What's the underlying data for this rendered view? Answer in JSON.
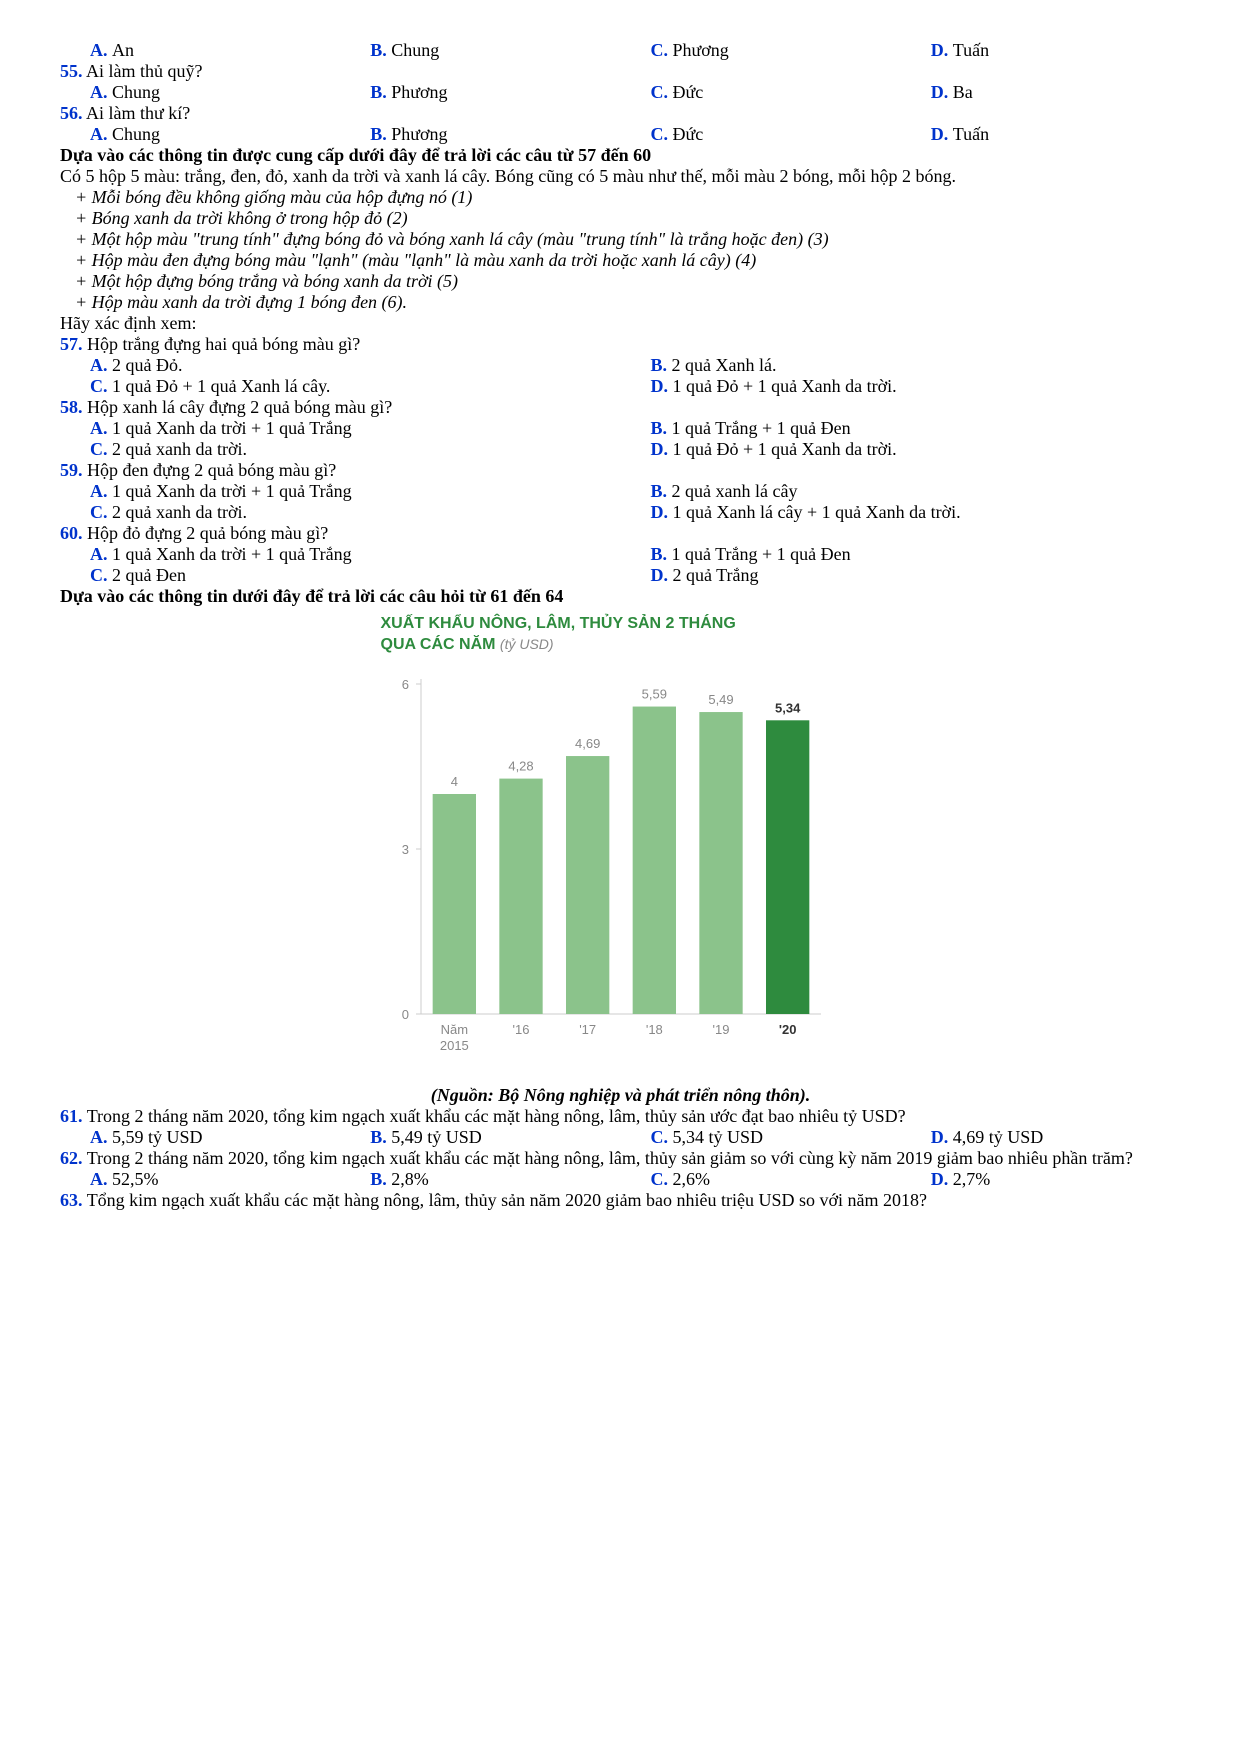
{
  "q54_opts": {
    "A": "An",
    "B": "Chung",
    "C": "Phương",
    "D": "Tuấn"
  },
  "q55": {
    "num": "55.",
    "text": "Ai làm thủ quỹ?",
    "A": "Chung",
    "B": "Phương",
    "C": "Đức",
    "D": "Ba"
  },
  "q56": {
    "num": "56.",
    "text": "Ai làm thư kí?",
    "A": "Chung",
    "B": "Phương",
    "C": "Đức",
    "D": "Tuấn"
  },
  "sec1_head": "Dựa vào các thông tin được cung cấp dưới đây để trả lời các câu từ 57 đến 60",
  "sec1_intro": "Có 5 hộp 5 màu: trắng, đen, đỏ, xanh da trời và xanh lá cây. Bóng cũng có 5 màu như thế, mỗi màu 2 bóng, mỗi hộp 2 bóng.",
  "clue1": "+ Mỗi bóng đều không giống màu của hộp đựng nó (1)",
  "clue2": "+ Bóng xanh da trời không ở trong hộp đỏ (2)",
  "clue3": "+ Một hộp màu \"trung tính\" đựng bóng đỏ và bóng xanh lá cây (màu \"trung tính\" là trắng hoặc đen) (3)",
  "clue4": "+ Hộp màu đen đựng bóng màu \"lạnh\" (màu \"lạnh\" là màu xanh da trời hoặc xanh lá cây) (4)",
  "clue5": "+ Một hộp đựng bóng trắng và bóng xanh da trời (5)",
  "clue6": "+ Hộp màu xanh da trời đựng 1 bóng đen (6).",
  "sec1_ask": "Hãy xác định xem:",
  "q57": {
    "num": "57.",
    "text": "Hộp trắng đựng hai quả bóng màu gì?",
    "A": "2 quả Đỏ.",
    "B": "2 quả Xanh lá.",
    "C": "1 quả Đỏ + 1 quả Xanh lá cây.",
    "D": "1 quả Đỏ + 1 quả Xanh da trời."
  },
  "q58": {
    "num": "58.",
    "text": "Hộp xanh lá cây đựng 2 quả bóng màu gì?",
    "A": "1 quả Xanh da trời + 1 quả Trắng",
    "B": "1 quả Trắng + 1 quả Đen",
    "C": "2 quả xanh da trời.",
    "D": "1 quả Đỏ + 1 quả Xanh da trời."
  },
  "q59": {
    "num": "59.",
    "text": "Hộp đen đựng 2 quả bóng màu gì?",
    "A": "1 quả Xanh da trời + 1 quả Trắng",
    "B": "2 quả xanh lá cây",
    "C": "2 quả xanh da trời.",
    "D": "1 quả Xanh lá cây + 1 quả Xanh da trời."
  },
  "q60": {
    "num": "60.",
    "text": "Hộp đỏ đựng 2 quả bóng màu gì?",
    "A": "1 quả Xanh da trời + 1 quả Trắng",
    "B": "1 quả Trắng + 1 quả Đen",
    "C": "2 quả Đen",
    "D": "2 quả Trắng"
  },
  "sec2_head": "Dựa vào các thông tin dưới đây để trả lời các câu hỏi từ 61 đến 64",
  "chart": {
    "type": "bar",
    "title": "XUẤT KHẨU NÔNG, LÂM, THỦY SẢN 2 THÁNG",
    "subtitle_prefix": "QUA CÁC NĂM ",
    "subtitle_unit": "(tỷ USD)",
    "categories": [
      "Năm\n2015",
      "'16",
      "'17",
      "'18",
      "'19",
      "'20"
    ],
    "values": [
      4,
      4.28,
      4.69,
      5.59,
      5.49,
      5.34
    ],
    "value_labels": [
      "4",
      "4,28",
      "4,69",
      "5,59",
      "5,49",
      "5,34"
    ],
    "bar_colors": [
      "#8bc38b",
      "#8bc38b",
      "#8bc38b",
      "#8bc38b",
      "#8bc38b",
      "#2e8b3e"
    ],
    "text_color": "#888888",
    "highlight_text_color": "#333333",
    "axis_color": "#cccccc",
    "ylim": [
      0,
      6
    ],
    "yticks": [
      0,
      3,
      6
    ],
    "bg": "#ffffff",
    "title_color": "#2e8b3e",
    "label_fontsize": 13
  },
  "source": "(Nguồn: Bộ Nông nghiệp và phát triển nông thôn).",
  "q61": {
    "num": "61.",
    "text": "Trong 2 tháng năm 2020, tổng kim ngạch xuất khẩu các mặt hàng nông, lâm, thủy sản ước đạt bao nhiêu tỷ USD?",
    "A": "5,59 tỷ USD",
    "B": "5,49 tỷ USD",
    "C": "5,34 tỷ USD",
    "D": "4,69 tỷ USD"
  },
  "q62": {
    "num": "62.",
    "text": "Trong 2 tháng năm 2020, tổng kim ngạch xuất khẩu các mặt hàng nông, lâm, thủy sản giảm so với cùng kỳ năm 2019 giảm bao nhiêu phần trăm?",
    "A": "52,5%",
    "B": "2,8%",
    "C": "2,6%",
    "D": "2,7%"
  },
  "q63": {
    "num": "63.",
    "text": "Tổng kim ngạch xuất khẩu các mặt hàng nông, lâm, thủy sản năm 2020 giảm bao nhiêu triệu USD so với năm 2018?"
  }
}
